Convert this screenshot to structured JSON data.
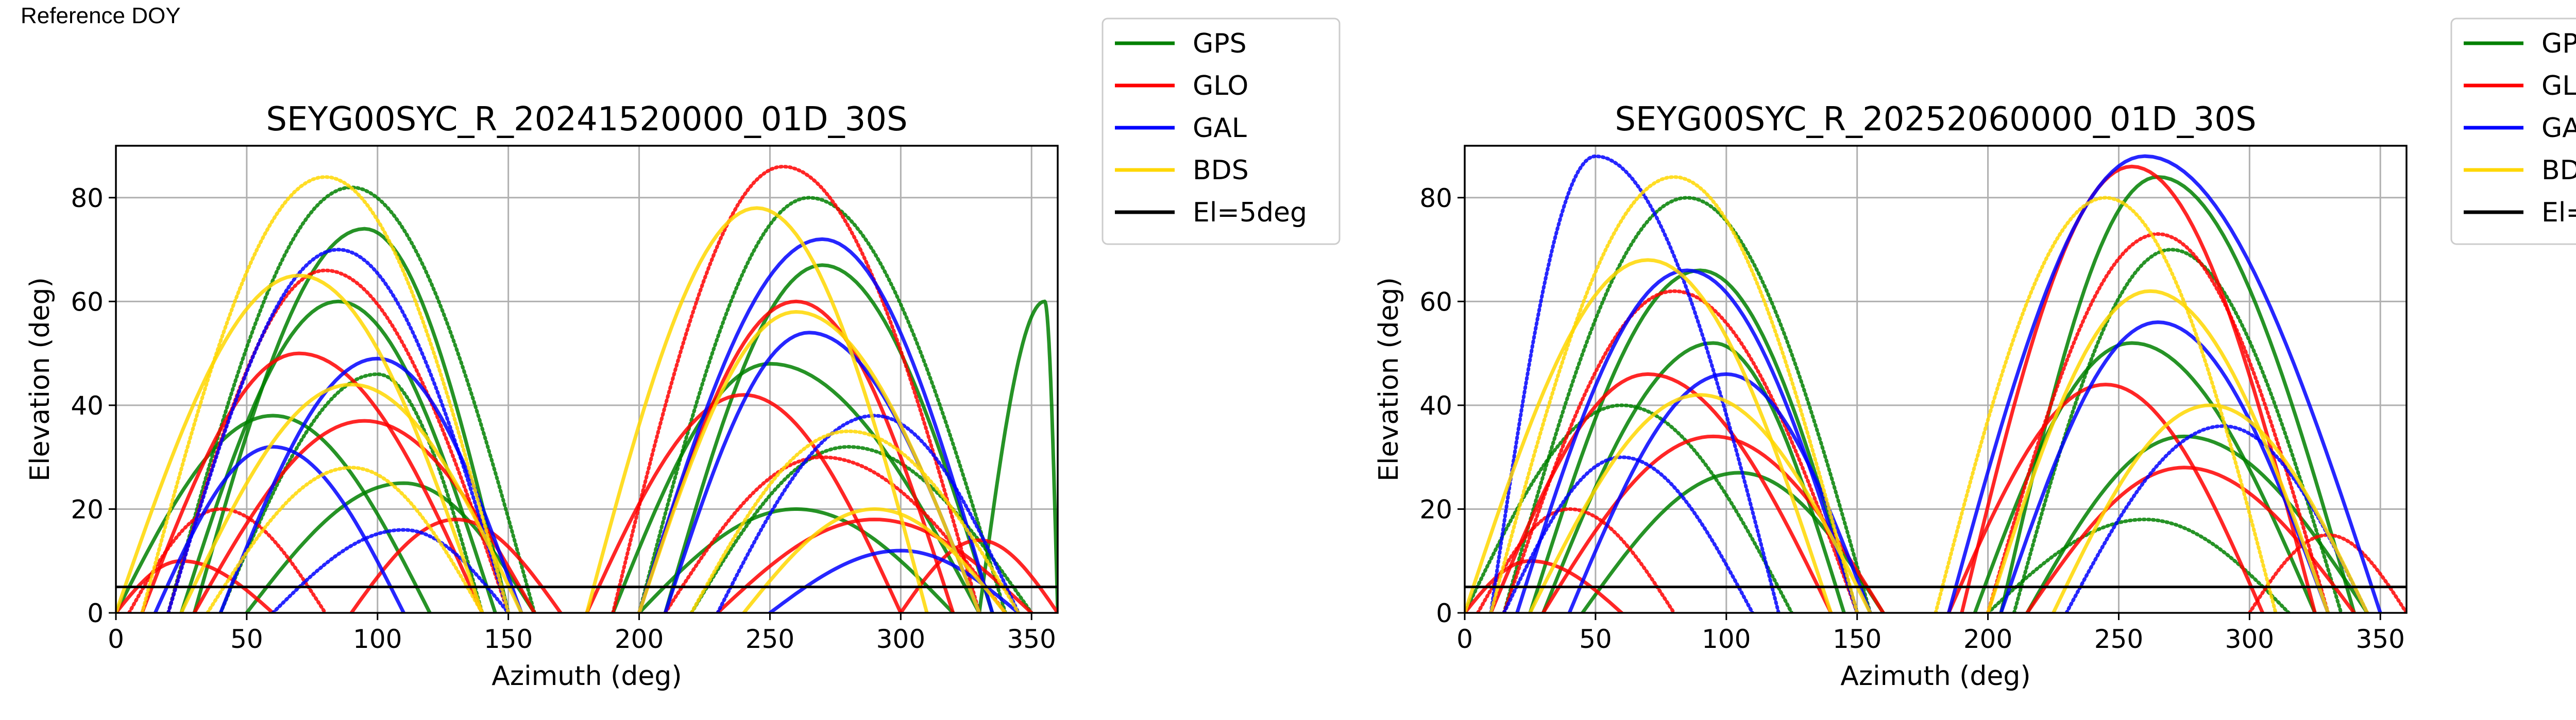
{
  "figure_label": "Reference DOY",
  "legend": [
    {
      "label": "GPS",
      "color": "#008000"
    },
    {
      "label": "GLO",
      "color": "#ff0000"
    },
    {
      "label": "GAL",
      "color": "#0000ff"
    },
    {
      "label": "BDS",
      "color": "#ffd700"
    },
    {
      "label": "El=5deg",
      "color": "#000000"
    }
  ],
  "chart_data": [
    {
      "type": "scatter",
      "title": "SEYG00SYC_R_20241520000_01D_30S",
      "xlabel": "Azimuth (deg)",
      "ylabel": "Elevation (deg)",
      "xlim": [
        0,
        360
      ],
      "ylim": [
        0,
        90
      ],
      "xticks": [
        0,
        50,
        100,
        150,
        200,
        250,
        300,
        350
      ],
      "yticks": [
        0,
        20,
        40,
        60,
        80
      ],
      "grid": true,
      "legend_position": "outside-right",
      "reference_line": {
        "name": "El=5deg",
        "y": 5
      },
      "series": [
        {
          "name": "GPS",
          "color": "#008000",
          "tracks": [
            {
              "az_start": 20,
              "az_peak": 90,
              "az_end": 160,
              "max_el": 82
            },
            {
              "az_start": 30,
              "az_peak": 95,
              "az_end": 150,
              "max_el": 74
            },
            {
              "az_start": 25,
              "az_peak": 85,
              "az_end": 145,
              "max_el": 60
            },
            {
              "az_start": 40,
              "az_peak": 100,
              "az_end": 140,
              "max_el": 46
            },
            {
              "az_start": 0,
              "az_peak": 60,
              "az_end": 120,
              "max_el": 38
            },
            {
              "az_start": 50,
              "az_peak": 110,
              "az_end": 160,
              "max_el": 25
            },
            {
              "az_start": 200,
              "az_peak": 265,
              "az_end": 340,
              "max_el": 80
            },
            {
              "az_start": 210,
              "az_peak": 270,
              "az_end": 335,
              "max_el": 67
            },
            {
              "az_start": 190,
              "az_peak": 250,
              "az_end": 330,
              "max_el": 48
            },
            {
              "az_start": 220,
              "az_peak": 280,
              "az_end": 350,
              "max_el": 32
            },
            {
              "az_start": 200,
              "az_peak": 260,
              "az_end": 320,
              "max_el": 20
            },
            {
              "az_start": 330,
              "az_peak": 355,
              "az_end": 360,
              "max_el": 60
            }
          ]
        },
        {
          "name": "GLO",
          "color": "#ff0000",
          "tracks": [
            {
              "az_start": 20,
              "az_peak": 80,
              "az_end": 150,
              "max_el": 66
            },
            {
              "az_start": 10,
              "az_peak": 70,
              "az_end": 140,
              "max_el": 50
            },
            {
              "az_start": 30,
              "az_peak": 95,
              "az_end": 160,
              "max_el": 37
            },
            {
              "az_start": 5,
              "az_peak": 40,
              "az_end": 80,
              "max_el": 20
            },
            {
              "az_start": 0,
              "az_peak": 25,
              "az_end": 60,
              "max_el": 10
            },
            {
              "az_start": 90,
              "az_peak": 130,
              "az_end": 170,
              "max_el": 18
            },
            {
              "az_start": 190,
              "az_peak": 255,
              "az_end": 330,
              "max_el": 86
            },
            {
              "az_start": 200,
              "az_peak": 260,
              "az_end": 320,
              "max_el": 60
            },
            {
              "az_start": 180,
              "az_peak": 240,
              "az_end": 300,
              "max_el": 42
            },
            {
              "az_start": 210,
              "az_peak": 270,
              "az_end": 340,
              "max_el": 30
            },
            {
              "az_start": 230,
              "az_peak": 290,
              "az_end": 350,
              "max_el": 18
            },
            {
              "az_start": 300,
              "az_peak": 330,
              "az_end": 360,
              "max_el": 14
            }
          ]
        },
        {
          "name": "GAL",
          "color": "#0000ff",
          "tracks": [
            {
              "az_start": 20,
              "az_peak": 85,
              "az_end": 150,
              "max_el": 70
            },
            {
              "az_start": 40,
              "az_peak": 100,
              "az_end": 155,
              "max_el": 49
            },
            {
              "az_start": 15,
              "az_peak": 60,
              "az_end": 110,
              "max_el": 32
            },
            {
              "az_start": 60,
              "az_peak": 110,
              "az_end": 150,
              "max_el": 16
            },
            {
              "az_start": 200,
              "az_peak": 270,
              "az_end": 335,
              "max_el": 72
            },
            {
              "az_start": 210,
              "az_peak": 265,
              "az_end": 330,
              "max_el": 54
            },
            {
              "az_start": 230,
              "az_peak": 290,
              "az_end": 345,
              "max_el": 38
            },
            {
              "az_start": 250,
              "az_peak": 300,
              "az_end": 345,
              "max_el": 12
            }
          ]
        },
        {
          "name": "BDS",
          "color": "#ffd700",
          "tracks": [
            {
              "az_start": 10,
              "az_peak": 80,
              "az_end": 150,
              "max_el": 84
            },
            {
              "az_start": 0,
              "az_peak": 70,
              "az_end": 140,
              "max_el": 65
            },
            {
              "az_start": 25,
              "az_peak": 90,
              "az_end": 155,
              "max_el": 44
            },
            {
              "az_start": 35,
              "az_peak": 90,
              "az_end": 140,
              "max_el": 28
            },
            {
              "az_start": 180,
              "az_peak": 245,
              "az_end": 310,
              "max_el": 78
            },
            {
              "az_start": 200,
              "az_peak": 260,
              "az_end": 330,
              "max_el": 58
            },
            {
              "az_start": 220,
              "az_peak": 280,
              "az_end": 345,
              "max_el": 35
            },
            {
              "az_start": 240,
              "az_peak": 290,
              "az_end": 340,
              "max_el": 20
            }
          ]
        }
      ]
    },
    {
      "type": "scatter",
      "title": "SEYG00SYC_R_20252060000_01D_30S",
      "xlabel": "Azimuth (deg)",
      "ylabel": "Elevation (deg)",
      "xlim": [
        0,
        360
      ],
      "ylim": [
        0,
        90
      ],
      "xticks": [
        0,
        50,
        100,
        150,
        200,
        250,
        300,
        350
      ],
      "yticks": [
        0,
        20,
        40,
        60,
        80
      ],
      "grid": true,
      "legend_position": "outside-right",
      "reference_line": {
        "name": "El=5deg",
        "y": 5
      },
      "series": [
        {
          "name": "GPS",
          "color": "#008000",
          "tracks": [
            {
              "az_start": 15,
              "az_peak": 85,
              "az_end": 155,
              "max_el": 80
            },
            {
              "az_start": 25,
              "az_peak": 90,
              "az_end": 150,
              "max_el": 66
            },
            {
              "az_start": 30,
              "az_peak": 95,
              "az_end": 145,
              "max_el": 52
            },
            {
              "az_start": 0,
              "az_peak": 60,
              "az_end": 125,
              "max_el": 40
            },
            {
              "az_start": 45,
              "az_peak": 105,
              "az_end": 160,
              "max_el": 27
            },
            {
              "az_start": 205,
              "az_peak": 265,
              "az_end": 340,
              "max_el": 84
            },
            {
              "az_start": 210,
              "az_peak": 270,
              "az_end": 335,
              "max_el": 70
            },
            {
              "az_start": 195,
              "az_peak": 255,
              "az_end": 325,
              "max_el": 52
            },
            {
              "az_start": 215,
              "az_peak": 275,
              "az_end": 345,
              "max_el": 34
            },
            {
              "az_start": 200,
              "az_peak": 260,
              "az_end": 315,
              "max_el": 18
            }
          ]
        },
        {
          "name": "GLO",
          "color": "#ff0000",
          "tracks": [
            {
              "az_start": 15,
              "az_peak": 80,
              "az_end": 150,
              "max_el": 62
            },
            {
              "az_start": 10,
              "az_peak": 70,
              "az_end": 140,
              "max_el": 46
            },
            {
              "az_start": 30,
              "az_peak": 95,
              "az_end": 160,
              "max_el": 34
            },
            {
              "az_start": 5,
              "az_peak": 40,
              "az_end": 80,
              "max_el": 20
            },
            {
              "az_start": 0,
              "az_peak": 25,
              "az_end": 60,
              "max_el": 10
            },
            {
              "az_start": 190,
              "az_peak": 255,
              "az_end": 325,
              "max_el": 86
            },
            {
              "az_start": 200,
              "az_peak": 265,
              "az_end": 330,
              "max_el": 73
            },
            {
              "az_start": 185,
              "az_peak": 245,
              "az_end": 305,
              "max_el": 44
            },
            {
              "az_start": 215,
              "az_peak": 275,
              "az_end": 340,
              "max_el": 28
            },
            {
              "az_start": 300,
              "az_peak": 330,
              "az_end": 360,
              "max_el": 15
            }
          ]
        },
        {
          "name": "GAL",
          "color": "#0000ff",
          "tracks": [
            {
              "az_start": 10,
              "az_peak": 50,
              "az_end": 120,
              "max_el": 88
            },
            {
              "az_start": 20,
              "az_peak": 85,
              "az_end": 150,
              "max_el": 66
            },
            {
              "az_start": 40,
              "az_peak": 100,
              "az_end": 155,
              "max_el": 46
            },
            {
              "az_start": 15,
              "az_peak": 60,
              "az_end": 110,
              "max_el": 30
            },
            {
              "az_start": 185,
              "az_peak": 260,
              "az_end": 350,
              "max_el": 88
            },
            {
              "az_start": 205,
              "az_peak": 265,
              "az_end": 330,
              "max_el": 56
            },
            {
              "az_start": 230,
              "az_peak": 290,
              "az_end": 345,
              "max_el": 36
            }
          ]
        },
        {
          "name": "BDS",
          "color": "#ffd700",
          "tracks": [
            {
              "az_start": 10,
              "az_peak": 80,
              "az_end": 150,
              "max_el": 84
            },
            {
              "az_start": 0,
              "az_peak": 70,
              "az_end": 140,
              "max_el": 68
            },
            {
              "az_start": 25,
              "az_peak": 90,
              "az_end": 155,
              "max_el": 42
            },
            {
              "az_start": 180,
              "az_peak": 245,
              "az_end": 310,
              "max_el": 80
            },
            {
              "az_start": 200,
              "az_peak": 262,
              "az_end": 330,
              "max_el": 62
            },
            {
              "az_start": 225,
              "az_peak": 285,
              "az_end": 345,
              "max_el": 40
            }
          ]
        }
      ]
    }
  ]
}
